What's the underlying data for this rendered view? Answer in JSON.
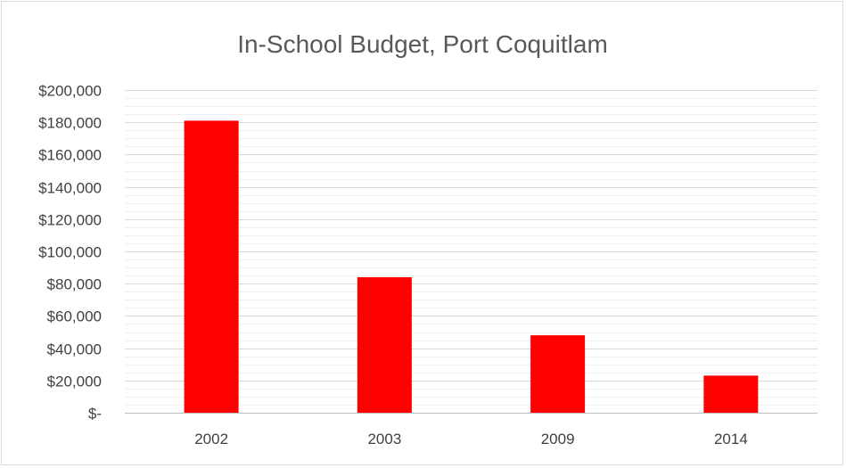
{
  "chart_data": {
    "type": "bar",
    "title": "In-School Budget, Port Coquitlam",
    "categories": [
      "2002",
      "2003",
      "2009",
      "2014"
    ],
    "values": [
      181000,
      84000,
      48000,
      23000
    ],
    "ylim": [
      0,
      200000
    ],
    "yticks": [
      0,
      20000,
      40000,
      60000,
      80000,
      100000,
      120000,
      140000,
      160000,
      180000,
      200000
    ],
    "ytick_labels": [
      "$-",
      "$20,000",
      "$40,000",
      "$60,000",
      "$80,000",
      "$100,000",
      "$120,000",
      "$140,000",
      "$160,000",
      "$180,000",
      "$200,000"
    ],
    "minor_grid_step": 5000,
    "grid": true,
    "legend": "none",
    "bar_color": "#ff0000",
    "grid_color": "#d9d9d9"
  }
}
